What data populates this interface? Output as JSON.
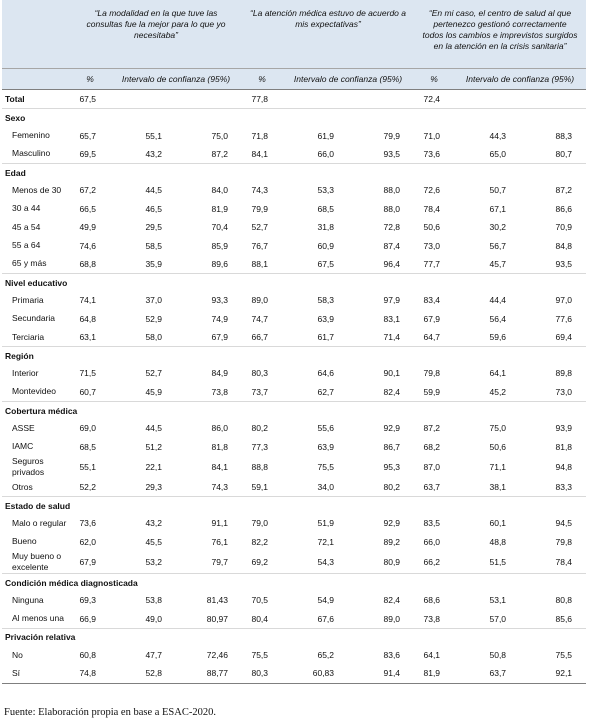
{
  "table": {
    "groups": [
      "“La modalidad en la que tuve las consultas fue la mejor para lo que yo necesitaba”",
      "“La atención médica estuvo de acuerdo a mis expectativas”",
      "“En mi caso, el centro de salud al que pertenezco gestionó correctamente todos los cambios e imprevistos surgidos en la atención en la crisis sanitaria”"
    ],
    "subheaders": [
      "%",
      "Intervalo de confianza (95%)"
    ],
    "total": {
      "label": "Total",
      "values": [
        "67,5",
        "77,8",
        "72,4"
      ]
    },
    "sections": [
      {
        "title": "Sexo",
        "rows": [
          {
            "label": "Femenino",
            "cells": [
              "65,7",
              "55,1",
              "75,0",
              "71,8",
              "61,9",
              "79,9",
              "71,0",
              "44,3",
              "88,3"
            ]
          },
          {
            "label": "Masculino",
            "cells": [
              "69,5",
              "43,2",
              "87,2",
              "84,1",
              "66,0",
              "93,5",
              "73,6",
              "65,0",
              "80,7"
            ]
          }
        ]
      },
      {
        "title": "Edad",
        "rows": [
          {
            "label": "Menos de 30",
            "cells": [
              "67,2",
              "44,5",
              "84,0",
              "74,3",
              "53,3",
              "88,0",
              "72,6",
              "50,7",
              "87,2"
            ]
          },
          {
            "label": "30 a 44",
            "cells": [
              "66,5",
              "46,5",
              "81,9",
              "79,9",
              "68,5",
              "88,0",
              "78,4",
              "67,1",
              "86,6"
            ]
          },
          {
            "label": "45 a 54",
            "cells": [
              "49,9",
              "29,5",
              "70,4",
              "52,7",
              "31,8",
              "72,8",
              "50,6",
              "30,2",
              "70,9"
            ]
          },
          {
            "label": "55 a 64",
            "cells": [
              "74,6",
              "58,5",
              "85,9",
              "76,7",
              "60,9",
              "87,4",
              "73,0",
              "56,7",
              "84,8"
            ]
          },
          {
            "label": "65 y más",
            "cells": [
              "68,8",
              "35,9",
              "89,6",
              "88,1",
              "67,5",
              "96,4",
              "77,7",
              "45,7",
              "93,5"
            ]
          }
        ]
      },
      {
        "title": "Nivel educativo",
        "rows": [
          {
            "label": "Primaria",
            "cells": [
              "74,1",
              "37,0",
              "93,3",
              "89,0",
              "58,3",
              "97,9",
              "83,4",
              "44,4",
              "97,0"
            ]
          },
          {
            "label": "Secundaria",
            "cells": [
              "64,8",
              "52,9",
              "74,9",
              "74,7",
              "63,9",
              "83,1",
              "67,9",
              "56,4",
              "77,6"
            ]
          },
          {
            "label": "Terciaria",
            "cells": [
              "63,1",
              "58,0",
              "67,9",
              "66,7",
              "61,7",
              "71,4",
              "64,7",
              "59,6",
              "69,4"
            ]
          }
        ]
      },
      {
        "title": "Región",
        "rows": [
          {
            "label": "Interior",
            "cells": [
              "71,5",
              "52,7",
              "84,9",
              "80,3",
              "64,6",
              "90,1",
              "79,8",
              "64,1",
              "89,8"
            ]
          },
          {
            "label": "Montevideo",
            "cells": [
              "60,7",
              "45,9",
              "73,8",
              "73,7",
              "62,7",
              "82,4",
              "59,9",
              "45,2",
              "73,0"
            ]
          }
        ]
      },
      {
        "title": "Cobertura médica",
        "rows": [
          {
            "label": "ASSE",
            "cells": [
              "69,0",
              "44,5",
              "86,0",
              "80,2",
              "55,6",
              "92,9",
              "87,2",
              "75,0",
              "93,9"
            ]
          },
          {
            "label": "IAMC",
            "cells": [
              "68,5",
              "51,2",
              "81,8",
              "77,3",
              "63,9",
              "86,7",
              "68,2",
              "50,6",
              "81,8"
            ]
          },
          {
            "label": "Seguros privados",
            "cells": [
              "55,1",
              "22,1",
              "84,1",
              "88,8",
              "75,5",
              "95,3",
              "87,0",
              "71,1",
              "94,8"
            ]
          },
          {
            "label": "Otros",
            "cells": [
              "52,2",
              "29,3",
              "74,3",
              "59,1",
              "34,0",
              "80,2",
              "63,7",
              "38,1",
              "83,3"
            ]
          }
        ]
      },
      {
        "title": "Estado de salud",
        "rows": [
          {
            "label": "Malo o regular",
            "cells": [
              "73,6",
              "43,2",
              "91,1",
              "79,0",
              "51,9",
              "92,9",
              "83,5",
              "60,1",
              "94,5"
            ]
          },
          {
            "label": "Bueno",
            "cells": [
              "62,0",
              "45,5",
              "76,1",
              "82,2",
              "72,1",
              "89,2",
              "66,0",
              "48,8",
              "79,8"
            ]
          },
          {
            "label": "Muy bueno o excelente",
            "cells": [
              "67,9",
              "53,2",
              "79,7",
              "69,2",
              "54,3",
              "80,9",
              "66,2",
              "51,5",
              "78,4"
            ]
          }
        ]
      },
      {
        "title": "Condición médica diagnosticada",
        "rows": [
          {
            "label": "Ninguna",
            "cells": [
              "69,3",
              "53,8",
              "81,43",
              "70,5",
              "54,9",
              "82,4",
              "68,6",
              "53,1",
              "80,8"
            ]
          },
          {
            "label": "Al menos una",
            "cells": [
              "66,9",
              "49,0",
              "80,97",
              "80,4",
              "67,6",
              "89,0",
              "73,8",
              "57,0",
              "85,6"
            ]
          }
        ]
      },
      {
        "title": "Privación relativa",
        "rows": [
          {
            "label": "No",
            "cells": [
              "60,8",
              "47,7",
              "72,46",
              "75,5",
              "65,2",
              "83,6",
              "64,1",
              "50,8",
              "75,5"
            ]
          },
          {
            "label": "Sí",
            "cells": [
              "74,8",
              "52,8",
              "88,77",
              "80,3",
              "60,83",
              "91,4",
              "81,9",
              "63,7",
              "92,1"
            ]
          }
        ]
      }
    ]
  },
  "footer": "Fuente: Elaboración propia en base a ESAC-2020."
}
